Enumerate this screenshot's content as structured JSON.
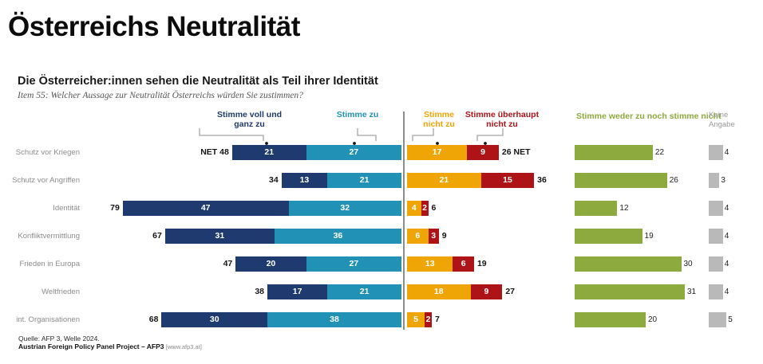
{
  "title": "Österreichs Neutralität",
  "subtitle": "Die Österreicher:innen sehen die Neutralität als Teil ihrer Identität",
  "item_question": "Item 55: Welcher Aussage zur Neutralität Österreichs würden Sie zustimmen?",
  "net_label": "NET",
  "legend": {
    "strong_agree": {
      "line1": "Stimme voll und",
      "line2": "ganz zu"
    },
    "agree": {
      "line1": "Stimme zu"
    },
    "disagree": {
      "line1": "Stimme",
      "line2": "nicht zu"
    },
    "strong_disagree": {
      "line1": "Stimme überhaupt",
      "line2": "nicht zu"
    },
    "neither": {
      "line1": "Stimme weder zu noch stimme nicht"
    },
    "no_answer": {
      "line1": "Keine",
      "line2": "Angabe"
    }
  },
  "colors": {
    "strong_agree": "#1e3a6e",
    "agree": "#2191b5",
    "disagree": "#efa506",
    "strong_disagree": "#ae1317",
    "neither": "#8caa3d",
    "no_answer": "#b9b9b9",
    "divider": "#8d8d8d"
  },
  "source": {
    "line1": "Quelle: AFP 3, Welle 2024.",
    "line2_bold": "Austrian Foreign Policy Panel Project – AFP3",
    "line2_note": "[www.afp3.at]"
  },
  "chart_data": {
    "type": "bar",
    "subtype": "diverging-stacked-bar-with-side-panels",
    "unit": "percent",
    "categories": [
      "Schutz vor Kriegen",
      "Schutz vor Angriffen",
      "Identität",
      "Konfliktvermittlung",
      "Frieden in Europa",
      "Weltfrieden",
      "int. Organisationen"
    ],
    "series": [
      {
        "name": "Stimme voll und ganz zu",
        "color": "#1e3a6e",
        "values": [
          21,
          13,
          47,
          31,
          20,
          17,
          30
        ]
      },
      {
        "name": "Stimme zu",
        "color": "#2191b5",
        "values": [
          27,
          21,
          32,
          36,
          27,
          21,
          38
        ]
      },
      {
        "name": "Stimme nicht zu",
        "color": "#efa506",
        "values": [
          17,
          21,
          4,
          6,
          13,
          18,
          5
        ]
      },
      {
        "name": "Stimme überhaupt nicht zu",
        "color": "#ae1317",
        "values": [
          9,
          15,
          2,
          3,
          6,
          9,
          2
        ]
      },
      {
        "name": "Stimme weder zu noch stimme nicht",
        "color": "#8caa3d",
        "values": [
          22,
          26,
          12,
          19,
          30,
          31,
          20
        ]
      },
      {
        "name": "Keine Angabe",
        "color": "#b9b9b9",
        "values": [
          4,
          3,
          4,
          4,
          4,
          4,
          5
        ]
      }
    ],
    "net_agree": [
      48,
      34,
      79,
      67,
      47,
      38,
      68
    ],
    "net_disagree": [
      26,
      36,
      6,
      9,
      19,
      27,
      7
    ],
    "layout_note": "agree side left of center divider, disagree side right; neither and no-answer shown as separate bars at far right"
  }
}
